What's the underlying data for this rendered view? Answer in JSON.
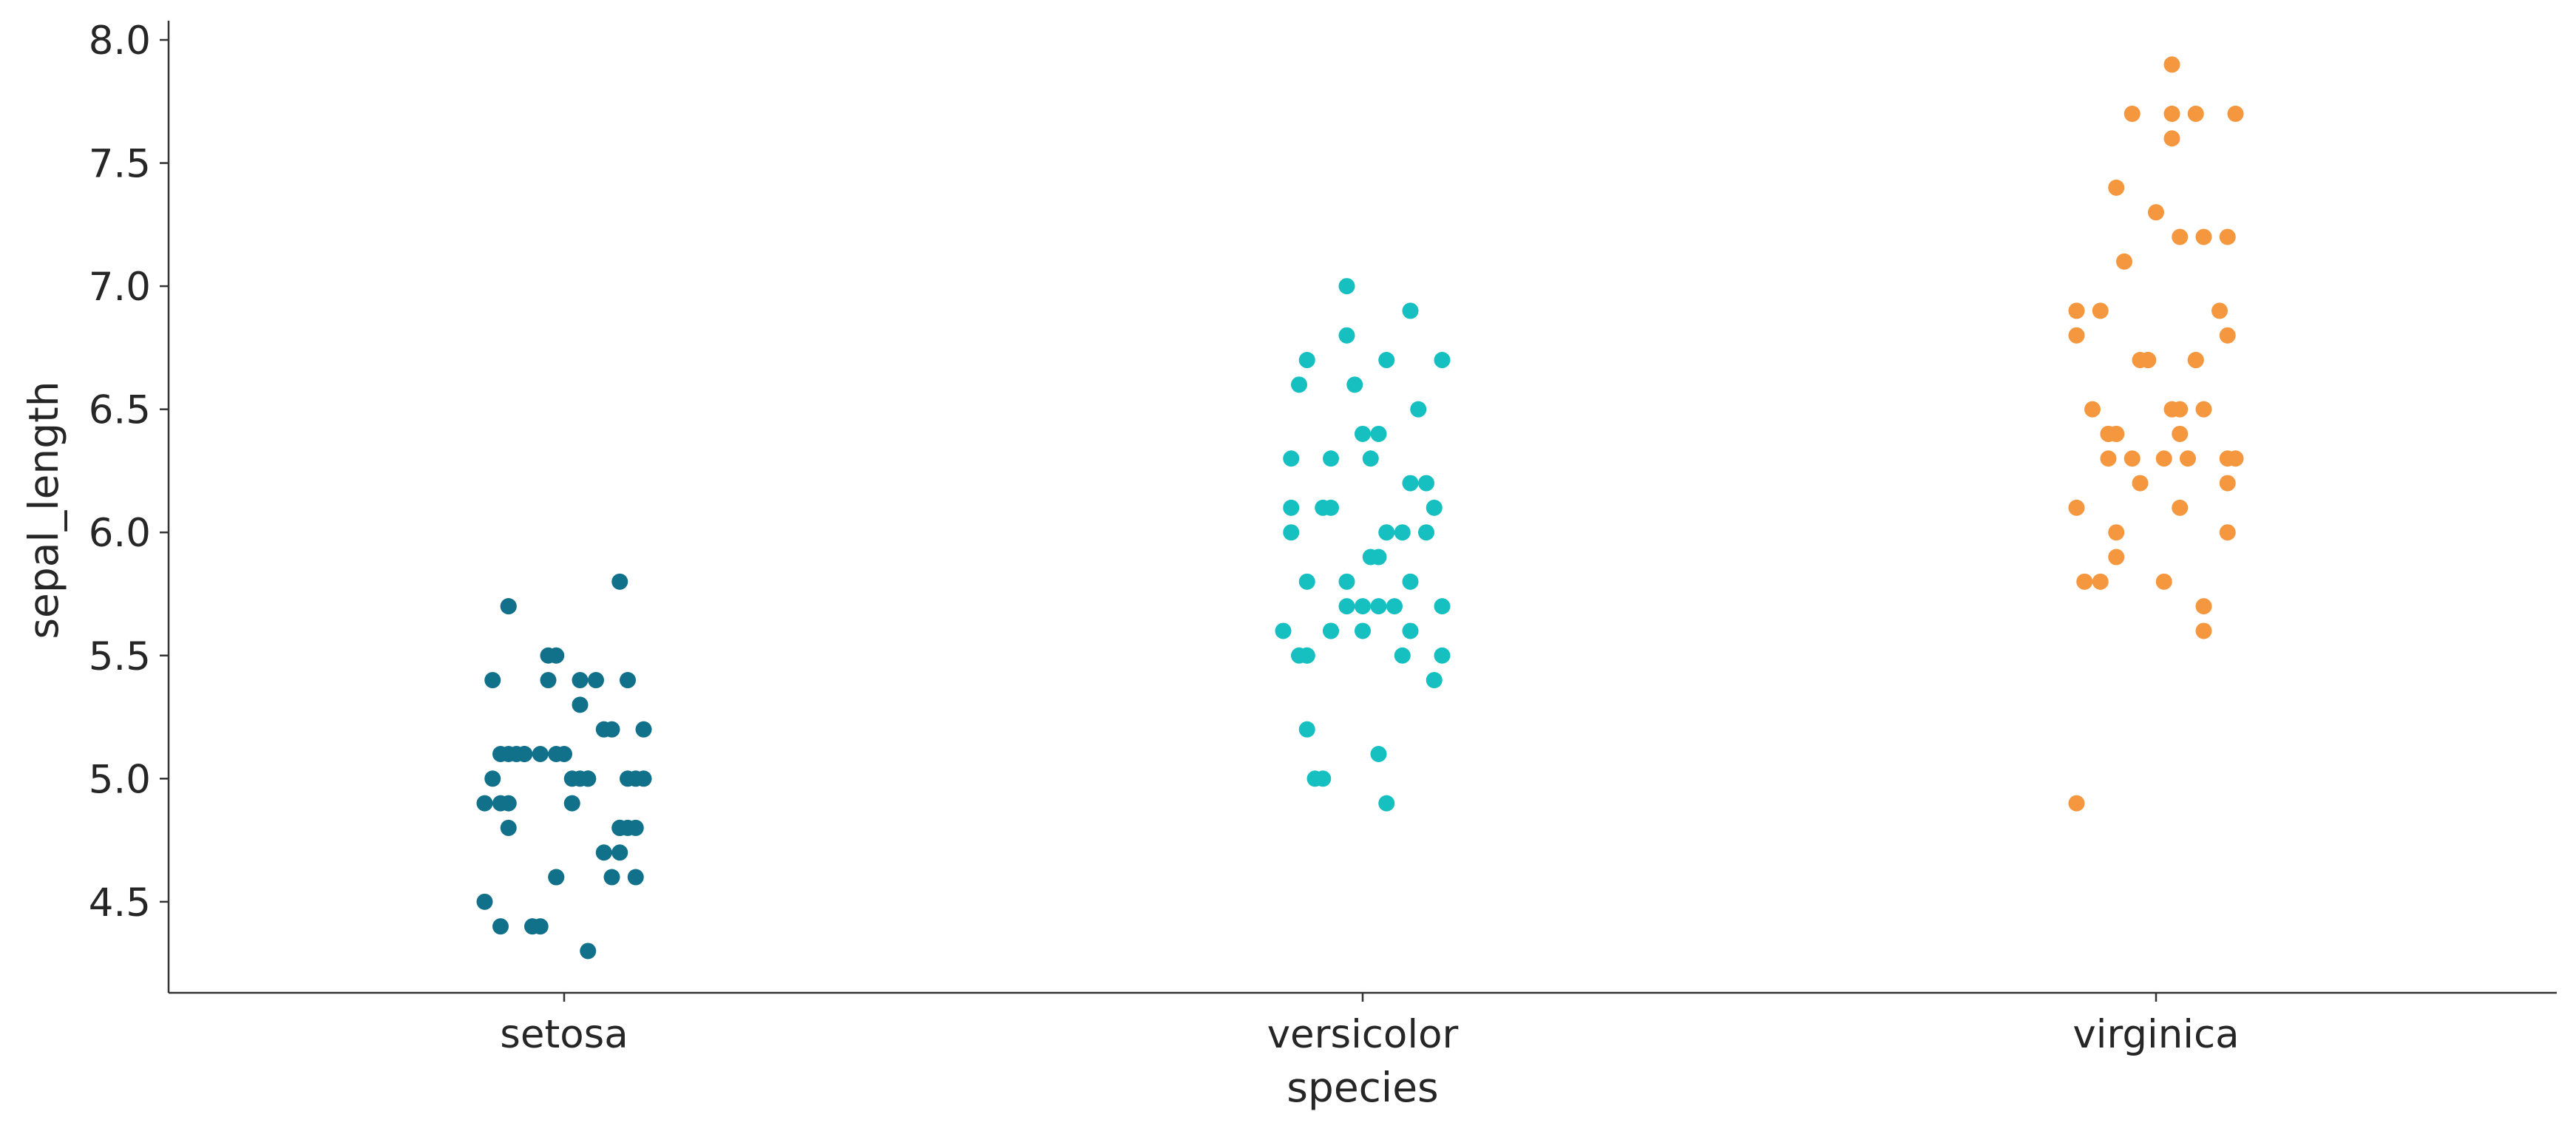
{
  "chart_data": {
    "type": "scatter",
    "subtype": "strip",
    "title": "",
    "xlabel": "species",
    "ylabel": "sepal_length",
    "categories": [
      "setosa",
      "versicolor",
      "virginica"
    ],
    "ylim": [
      4.2,
      8.1
    ],
    "yticks": [
      "4.5",
      "5.0",
      "5.5",
      "6.0",
      "6.5",
      "7.0",
      "7.5",
      "8.0"
    ],
    "grid": false,
    "legend": "none",
    "colors": {
      "setosa": "#12718a",
      "versicolor": "#16c0c0",
      "virginica": "#f5973e",
      "axis": "#333333",
      "text": "#262626"
    },
    "series": [
      {
        "category": "setosa",
        "points": [
          {
            "y": 5.1,
            "j": -0.07
          },
          {
            "y": 4.9,
            "j": -0.08
          },
          {
            "y": 4.7,
            "j": 0.05
          },
          {
            "y": 4.6,
            "j": -0.01
          },
          {
            "y": 5.0,
            "j": -0.09
          },
          {
            "y": 5.4,
            "j": -0.09
          },
          {
            "y": 4.6,
            "j": 0.06
          },
          {
            "y": 5.0,
            "j": 0.02
          },
          {
            "y": 4.4,
            "j": -0.08
          },
          {
            "y": 4.9,
            "j": -0.1
          },
          {
            "y": 5.4,
            "j": -0.02
          },
          {
            "y": 4.8,
            "j": 0.07
          },
          {
            "y": 4.8,
            "j": -0.07
          },
          {
            "y": 4.3,
            "j": 0.03
          },
          {
            "y": 5.8,
            "j": 0.07
          },
          {
            "y": 5.7,
            "j": -0.07
          },
          {
            "y": 5.4,
            "j": 0.04
          },
          {
            "y": 5.1,
            "j": -0.05
          },
          {
            "y": 5.7,
            "j": -0.07
          },
          {
            "y": 5.1,
            "j": -0.06
          },
          {
            "y": 5.4,
            "j": 0.02
          },
          {
            "y": 5.1,
            "j": -0.01
          },
          {
            "y": 4.6,
            "j": -0.01
          },
          {
            "y": 5.1,
            "j": -0.05
          },
          {
            "y": 4.8,
            "j": 0.08
          },
          {
            "y": 5.0,
            "j": 0.01
          },
          {
            "y": 5.0,
            "j": 0.08
          },
          {
            "y": 5.2,
            "j": 0.05
          },
          {
            "y": 5.2,
            "j": 0.06
          },
          {
            "y": 4.7,
            "j": 0.07
          },
          {
            "y": 4.8,
            "j": 0.09
          },
          {
            "y": 5.4,
            "j": 0.08
          },
          {
            "y": 5.2,
            "j": 0.1
          },
          {
            "y": 5.5,
            "j": -0.02
          },
          {
            "y": 4.9,
            "j": -0.07
          },
          {
            "y": 5.0,
            "j": 0.1
          },
          {
            "y": 5.5,
            "j": -0.01
          },
          {
            "y": 4.9,
            "j": 0.01
          },
          {
            "y": 4.4,
            "j": -0.03
          },
          {
            "y": 5.1,
            "j": -0.03
          },
          {
            "y": 5.0,
            "j": 0.03
          },
          {
            "y": 4.5,
            "j": -0.1
          },
          {
            "y": 4.4,
            "j": -0.04
          },
          {
            "y": 5.0,
            "j": 0.09
          },
          {
            "y": 5.1,
            "j": 0.0
          },
          {
            "y": 4.8,
            "j": 0.07
          },
          {
            "y": 5.1,
            "j": -0.08
          },
          {
            "y": 4.6,
            "j": 0.09
          },
          {
            "y": 5.3,
            "j": 0.02
          },
          {
            "y": 5.0,
            "j": 0.03
          }
        ]
      },
      {
        "category": "versicolor",
        "points": [
          {
            "y": 7.0,
            "j": -0.02
          },
          {
            "y": 6.4,
            "j": 0.02
          },
          {
            "y": 6.9,
            "j": 0.06
          },
          {
            "y": 5.5,
            "j": -0.07
          },
          {
            "y": 6.5,
            "j": 0.07
          },
          {
            "y": 5.7,
            "j": 0.04
          },
          {
            "y": 6.3,
            "j": -0.04
          },
          {
            "y": 4.9,
            "j": 0.03
          },
          {
            "y": 6.6,
            "j": -0.01
          },
          {
            "y": 5.2,
            "j": -0.07
          },
          {
            "y": 5.0,
            "j": -0.06
          },
          {
            "y": 5.9,
            "j": 0.02
          },
          {
            "y": 6.0,
            "j": -0.09
          },
          {
            "y": 6.1,
            "j": 0.09
          },
          {
            "y": 5.6,
            "j": 0.0
          },
          {
            "y": 6.7,
            "j": 0.1
          },
          {
            "y": 5.6,
            "j": 0.06
          },
          {
            "y": 5.8,
            "j": -0.07
          },
          {
            "y": 6.2,
            "j": 0.06
          },
          {
            "y": 5.6,
            "j": -0.04
          },
          {
            "y": 5.9,
            "j": 0.01
          },
          {
            "y": 6.1,
            "j": -0.04
          },
          {
            "y": 6.3,
            "j": 0.01
          },
          {
            "y": 6.1,
            "j": -0.05
          },
          {
            "y": 6.4,
            "j": 0.0
          },
          {
            "y": 6.6,
            "j": -0.08
          },
          {
            "y": 6.8,
            "j": -0.02
          },
          {
            "y": 6.7,
            "j": 0.03
          },
          {
            "y": 6.0,
            "j": 0.03
          },
          {
            "y": 5.7,
            "j": -0.02
          },
          {
            "y": 5.5,
            "j": -0.08
          },
          {
            "y": 5.5,
            "j": -0.07
          },
          {
            "y": 5.8,
            "j": 0.06
          },
          {
            "y": 6.0,
            "j": 0.05
          },
          {
            "y": 5.4,
            "j": 0.09
          },
          {
            "y": 6.0,
            "j": 0.08
          },
          {
            "y": 6.7,
            "j": -0.07
          },
          {
            "y": 6.3,
            "j": -0.09
          },
          {
            "y": 5.6,
            "j": -0.04
          },
          {
            "y": 5.5,
            "j": 0.05
          },
          {
            "y": 5.5,
            "j": 0.1
          },
          {
            "y": 6.1,
            "j": -0.09
          },
          {
            "y": 5.8,
            "j": -0.02
          },
          {
            "y": 5.0,
            "j": -0.05
          },
          {
            "y": 5.6,
            "j": -0.1
          },
          {
            "y": 5.7,
            "j": 0.1
          },
          {
            "y": 5.7,
            "j": 0.0
          },
          {
            "y": 6.2,
            "j": 0.08
          },
          {
            "y": 5.1,
            "j": 0.02
          },
          {
            "y": 5.7,
            "j": 0.02
          }
        ]
      },
      {
        "category": "virginica",
        "points": [
          {
            "y": 6.3,
            "j": 0.01
          },
          {
            "y": 5.8,
            "j": -0.07
          },
          {
            "y": 7.1,
            "j": -0.04
          },
          {
            "y": 6.3,
            "j": -0.06
          },
          {
            "y": 6.5,
            "j": 0.02
          },
          {
            "y": 7.6,
            "j": 0.02
          },
          {
            "y": 4.9,
            "j": -0.1
          },
          {
            "y": 7.3,
            "j": -0.0
          },
          {
            "y": 6.7,
            "j": 0.05
          },
          {
            "y": 7.2,
            "j": 0.03
          },
          {
            "y": 6.5,
            "j": 0.06
          },
          {
            "y": 6.4,
            "j": -0.05
          },
          {
            "y": 6.8,
            "j": 0.09
          },
          {
            "y": 5.7,
            "j": 0.06
          },
          {
            "y": 5.8,
            "j": 0.01
          },
          {
            "y": 6.4,
            "j": -0.05
          },
          {
            "y": 6.5,
            "j": 0.03
          },
          {
            "y": 7.7,
            "j": 0.05
          },
          {
            "y": 7.7,
            "j": -0.03
          },
          {
            "y": 6.0,
            "j": -0.05
          },
          {
            "y": 6.9,
            "j": 0.08
          },
          {
            "y": 5.6,
            "j": 0.06
          },
          {
            "y": 7.7,
            "j": 0.1
          },
          {
            "y": 6.3,
            "j": 0.09
          },
          {
            "y": 6.7,
            "j": -0.02
          },
          {
            "y": 7.2,
            "j": 0.06
          },
          {
            "y": 6.2,
            "j": 0.09
          },
          {
            "y": 6.1,
            "j": -0.1
          },
          {
            "y": 6.4,
            "j": -0.06
          },
          {
            "y": 7.2,
            "j": 0.09
          },
          {
            "y": 7.4,
            "j": -0.05
          },
          {
            "y": 7.9,
            "j": 0.02
          },
          {
            "y": 6.4,
            "j": 0.03
          },
          {
            "y": 6.3,
            "j": 0.04
          },
          {
            "y": 6.1,
            "j": 0.03
          },
          {
            "y": 7.7,
            "j": 0.02
          },
          {
            "y": 6.3,
            "j": 0.1
          },
          {
            "y": 6.4,
            "j": -0.06
          },
          {
            "y": 6.0,
            "j": 0.09
          },
          {
            "y": 6.9,
            "j": -0.1
          },
          {
            "y": 6.7,
            "j": -0.01
          },
          {
            "y": 6.9,
            "j": -0.07
          },
          {
            "y": 5.8,
            "j": -0.09
          },
          {
            "y": 6.8,
            "j": -0.1
          },
          {
            "y": 6.7,
            "j": 0.05
          },
          {
            "y": 6.7,
            "j": -0.01
          },
          {
            "y": 6.3,
            "j": -0.03
          },
          {
            "y": 6.5,
            "j": -0.08
          },
          {
            "y": 6.2,
            "j": -0.02
          },
          {
            "y": 5.9,
            "j": -0.05
          }
        ]
      }
    ]
  }
}
